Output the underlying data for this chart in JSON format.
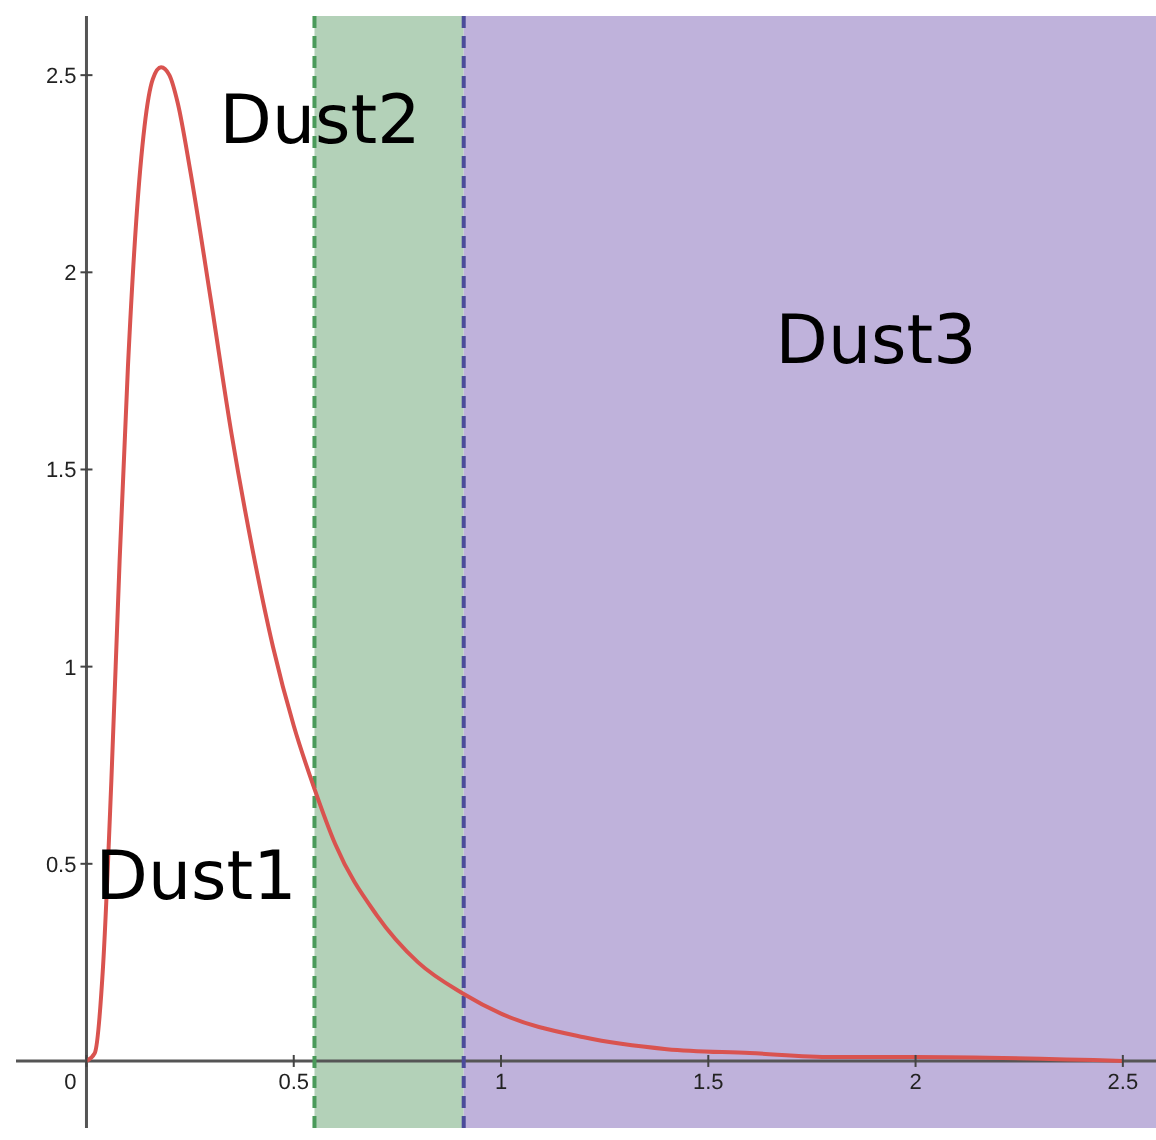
{
  "chart_data": {
    "type": "line",
    "x": [
      0,
      0.02,
      0.04,
      0.06,
      0.08,
      0.1,
      0.12,
      0.14,
      0.16,
      0.18,
      0.2,
      0.22,
      0.25,
      0.3,
      0.35,
      0.4,
      0.45,
      0.5,
      0.55,
      0.6,
      0.7,
      0.8,
      0.91,
      1,
      1.2,
      1.4,
      1.6,
      1.8,
      2,
      2.5
    ],
    "series": [
      {
        "color": "#d9534f",
        "values": [
          0,
          0.02,
          0.24,
          0.71,
          1.27,
          1.76,
          2.13,
          2.37,
          2.49,
          2.52,
          2.5,
          2.43,
          2.26,
          1.93,
          1.59,
          1.3,
          1.05,
          0.85,
          0.69,
          0.55,
          0.37,
          0.25,
          0.17,
          0.12,
          0.06,
          0.03,
          0.02,
          0.01,
          0.01,
          0
        ]
      }
    ],
    "xlim": [
      -0.17,
      2.58
    ],
    "ylim": [
      -0.17,
      2.65
    ],
    "xticks": [
      0,
      0.5,
      1,
      1.5,
      2,
      2.5
    ],
    "yticks": [
      0.5,
      1,
      1.5,
      2,
      2.5
    ],
    "grid": false,
    "marker": "none",
    "line_style": "solid",
    "ref_lines": [
      {
        "axis": "x",
        "value": 0.55,
        "color": "#4a9a5a",
        "line_style": "dashed"
      },
      {
        "axis": "x",
        "value": 0.91,
        "color": "#4b4b9a",
        "line_style": "dashed"
      }
    ],
    "bands": [
      {
        "axis": "x",
        "from": 0.55,
        "to": 0.91,
        "color": "#b3d1b8"
      },
      {
        "axis": "x",
        "from": 0.91,
        "to": 2.58,
        "color": "#bfb2db"
      }
    ],
    "annotations": [
      "Dust1",
      "Dust2",
      "Dust3"
    ]
  }
}
